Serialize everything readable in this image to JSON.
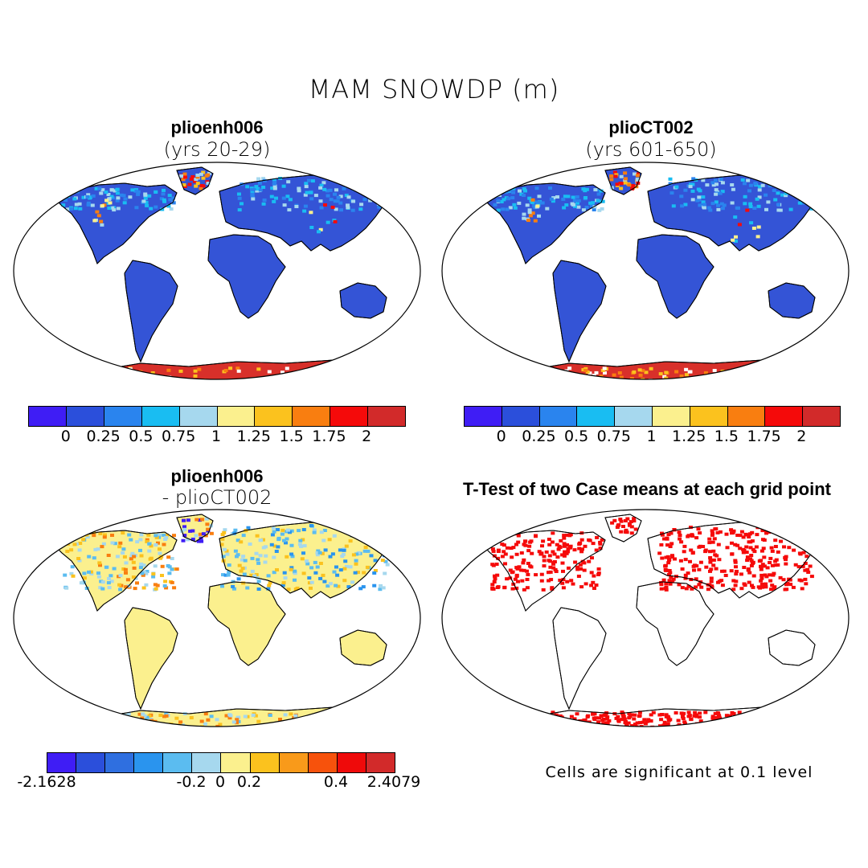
{
  "main_title": "MAM SNOWDP (m)",
  "panels": {
    "top_left": {
      "title": "plioenh006",
      "subtitle": "(yrs 20-29)"
    },
    "top_right": {
      "title": "plioCT002",
      "subtitle": "(yrs 601-650)"
    },
    "bottom_left": {
      "title": "plioenh006",
      "subtitle": "- plioCT002"
    },
    "bottom_right": {
      "title": "T-Test of two Case means at each grid point",
      "note": "Cells are significant at 0.1 level"
    }
  },
  "colorbar_top": {
    "colors": [
      "#3f1df5",
      "#2b4fdb",
      "#2a84ee",
      "#19bdf2",
      "#a6d8ee",
      "#fbf08e",
      "#fbc21e",
      "#f97e10",
      "#f50a0a",
      "#d22a2a"
    ],
    "labels": [
      "0",
      "0.25",
      "0.5",
      "0.75",
      "1",
      "1.25",
      "1.5",
      "1.75",
      "2"
    ]
  },
  "colorbar_diff": {
    "colors": [
      "#3f1df5",
      "#2b4fdb",
      "#2f6fe0",
      "#2a94ee",
      "#5bbcf0",
      "#a6d8ee",
      "#fbf08e",
      "#fbc21e",
      "#f99a1a",
      "#f7520c",
      "#ef0a0a",
      "#d22a2a"
    ],
    "labels": [
      "-2.1628",
      "-0.2",
      "0",
      "0.2",
      "0.4",
      "2.4079"
    ]
  },
  "map_colors": {
    "land_base": "#3454d6",
    "diff_base": "#fbf08e",
    "antarctic": "#d8302a",
    "antarctic_edge": "#f7a41e",
    "significant": "#f50a0a",
    "greenland_top": "#f26a1a",
    "ocean": "#ffffff"
  }
}
